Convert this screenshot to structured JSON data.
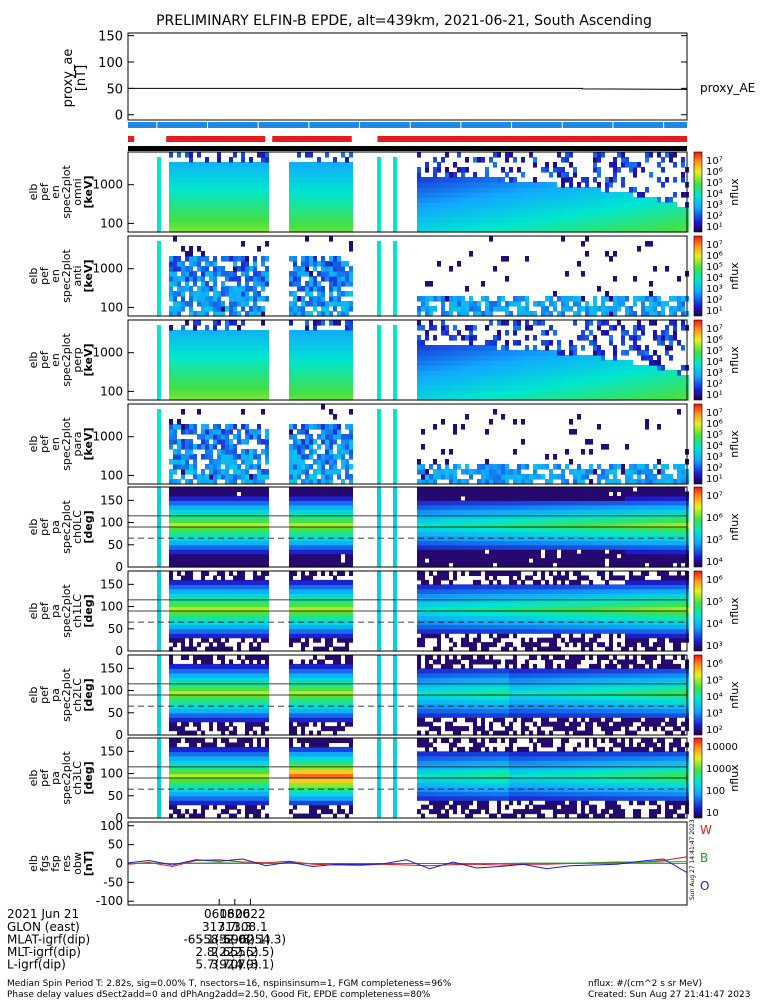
{
  "title": "PRELIMINARY ELFIN-B EPDE, alt=439km, 2021-06-21, South Ascending",
  "colors": {
    "ae_line": "#000000",
    "bar_blue": "#1e88e5",
    "bar_red": "#e51c1c",
    "bar_black": "#000000",
    "mag_W": "#e01b1b",
    "mag_B": "#1fa01f",
    "mag_O": "#1c1cc8"
  },
  "chart_data": [
    {
      "type": "line",
      "panel": "proxy_ae",
      "ylabel": [
        "proxy_ae",
        "[nT]"
      ],
      "yticks": [
        "150",
        "100",
        "50",
        "0"
      ],
      "ylim": [
        -10,
        155
      ],
      "legend": "proxy_AE",
      "series": [
        {
          "name": "proxy_AE",
          "x_min": [
            6.4,
            64.6,
            64.6,
            78.0
          ],
          "values": [
            50,
            50,
            49,
            48
          ]
        }
      ]
    },
    {
      "type": "bar",
      "panel": "bars",
      "blue_segments_min": [
        [
          6.3,
          78.0
        ]
      ],
      "red_segments_min": [
        [
          6.3,
          7.1
        ],
        [
          11.2,
          23.9
        ],
        [
          24.8,
          35.0
        ],
        [
          38.3,
          78.0
        ]
      ],
      "black_segments_min": [
        [
          6.3,
          78.0
        ]
      ]
    },
    {
      "type": "heatmap",
      "panel": "spec2plot omni",
      "ylabel": [
        "elb",
        "pef",
        "en",
        "spec2plot",
        "omni",
        "[keV]"
      ],
      "yticks": [
        "1000",
        "100"
      ],
      "ylim": [
        60,
        7000
      ],
      "yscale": "log",
      "colorbar_ticks": [
        "10⁷",
        "10⁶",
        "10⁵",
        "10⁴",
        "10³",
        "10²",
        "10¹"
      ],
      "colorbar_label": "nflux"
    },
    {
      "type": "heatmap",
      "panel": "spec2plot anti",
      "ylabel": [
        "elb",
        "pef",
        "en",
        "spec2plot",
        "anti",
        "[keV]"
      ],
      "yticks": [
        "1000",
        "100"
      ],
      "ylim": [
        60,
        7000
      ],
      "yscale": "log",
      "colorbar_ticks": [
        "10⁷",
        "10⁶",
        "10⁵",
        "10⁴",
        "10³",
        "10²",
        "10¹"
      ],
      "colorbar_label": "nflux"
    },
    {
      "type": "heatmap",
      "panel": "spec2plot perp",
      "ylabel": [
        "elb",
        "pef",
        "en",
        "spec2plot",
        "perp",
        "[keV]"
      ],
      "yticks": [
        "1000",
        "100"
      ],
      "ylim": [
        60,
        7000
      ],
      "yscale": "log",
      "colorbar_ticks": [
        "10⁷",
        "10⁶",
        "10⁵",
        "10⁴",
        "10³",
        "10²",
        "10¹"
      ],
      "colorbar_label": "nflux"
    },
    {
      "type": "heatmap",
      "panel": "spec2plot para",
      "ylabel": [
        "elb",
        "pef",
        "en",
        "spec2plot",
        "para",
        "[keV]"
      ],
      "yticks": [
        "1000",
        "100"
      ],
      "ylim": [
        60,
        7000
      ],
      "yscale": "log",
      "colorbar_ticks": [
        "10⁷",
        "10⁶",
        "10⁵",
        "10⁴",
        "10³",
        "10²",
        "10¹"
      ],
      "colorbar_label": "nflux"
    },
    {
      "type": "heatmap",
      "panel": "spec2plot ch0LC",
      "ylabel": [
        "elb",
        "pef",
        "pa",
        "spec2plot",
        "ch0LC",
        "[deg]"
      ],
      "yticks": [
        "150",
        "100",
        "50",
        "0"
      ],
      "ylim": [
        0,
        180
      ],
      "colorbar_ticks": [
        "10⁷",
        "10⁶",
        "10⁵",
        "10⁴"
      ],
      "colorbar_label": "nflux"
    },
    {
      "type": "heatmap",
      "panel": "spec2plot ch1LC",
      "ylabel": [
        "elb",
        "pef",
        "pa",
        "spec2plot",
        "ch1LC",
        "[deg]"
      ],
      "yticks": [
        "150",
        "100",
        "50",
        "0"
      ],
      "ylim": [
        0,
        180
      ],
      "colorbar_ticks": [
        "10⁶",
        "10⁵",
        "10⁴",
        "10³"
      ],
      "colorbar_label": "nflux"
    },
    {
      "type": "heatmap",
      "panel": "spec2plot ch2LC",
      "ylabel": [
        "elb",
        "pef",
        "pa",
        "spec2plot",
        "ch2LC",
        "[deg]"
      ],
      "yticks": [
        "150",
        "100",
        "50",
        "0"
      ],
      "ylim": [
        0,
        180
      ],
      "colorbar_ticks": [
        "10⁶",
        "10⁵",
        "10⁴",
        "10³",
        "10²"
      ],
      "colorbar_label": "nflux"
    },
    {
      "type": "heatmap",
      "panel": "spec2plot ch3LC",
      "ylabel": [
        "elb",
        "pef",
        "pa",
        "spec2plot",
        "ch3LC",
        "[deg]"
      ],
      "yticks": [
        "150",
        "100",
        "50",
        "0"
      ],
      "ylim": [
        0,
        180
      ],
      "colorbar_ticks": [
        "10000",
        "1000",
        "100",
        "10"
      ],
      "colorbar_label": "nflux"
    },
    {
      "type": "line",
      "panel": "fgs res",
      "ylabel": [
        "elb",
        "fgs",
        "fsp",
        "res",
        "obw",
        "[nT]"
      ],
      "yticks": [
        "100",
        "50",
        "0",
        "-50",
        "-100"
      ],
      "ylim": [
        -110,
        110
      ],
      "legend_letters": [
        "W",
        "B",
        "O"
      ],
      "stamp": "Sun Aug 27 14:41:47 2023",
      "series": [
        {
          "name": "W",
          "x_min": [
            6.4,
            9,
            12,
            15,
            18,
            21,
            24,
            27,
            30,
            33,
            36,
            39,
            42,
            45,
            48,
            51,
            54,
            57,
            60,
            63,
            66,
            69,
            72,
            75,
            78
          ],
          "values": [
            -2,
            3,
            -8,
            8,
            10,
            4,
            2,
            6,
            -2,
            -4,
            -5,
            -2,
            -4,
            -6,
            -3,
            -2,
            -4,
            -2,
            -2,
            0,
            2,
            4,
            3,
            8,
            18
          ]
        },
        {
          "name": "B",
          "x_min": [
            6.4,
            9,
            12,
            15,
            18,
            21,
            24,
            27,
            30,
            33,
            36,
            39,
            42,
            45,
            48,
            51,
            54,
            57,
            60,
            63,
            66,
            69,
            72,
            75,
            78
          ],
          "values": [
            0,
            1,
            0,
            1,
            2,
            1,
            0,
            1,
            0,
            0,
            0,
            0,
            0,
            0,
            0,
            0,
            0,
            1,
            1,
            1,
            2,
            2,
            3,
            4,
            5
          ]
        },
        {
          "name": "O",
          "x_min": [
            6.4,
            9,
            12,
            15,
            18,
            21,
            24,
            27,
            30,
            33,
            36,
            39,
            42,
            45,
            48,
            51,
            54,
            57,
            60,
            63,
            66,
            69,
            72,
            75,
            78
          ],
          "values": [
            2,
            8,
            -4,
            10,
            6,
            12,
            -6,
            4,
            -8,
            -2,
            -3,
            -1,
            10,
            -14,
            4,
            -12,
            -8,
            -2,
            -14,
            -6,
            -4,
            -2,
            6,
            12,
            -24
          ]
        }
      ]
    }
  ],
  "xaxis": {
    "tick_minutes": [
      18,
      20,
      22
    ],
    "tick_labels": [
      "0618",
      "0620",
      "0622"
    ],
    "start_label": "2021 Jun 21",
    "rows": [
      {
        "name": "GLON (east)",
        "values": [
          "317.7",
          "311.3",
          "308.1"
        ]
      },
      {
        "name": "MLAT-igrf(dip)",
        "values": [
          "-65.1(-69.8)",
          "-58.5(-62.1)",
          "-52.0(-54.3)"
        ]
      },
      {
        "name": "MLT-igrf(dip)",
        "values": [
          "2.8(2.5)",
          "2.6(2.5)",
          "2.5(2.5)"
        ]
      },
      {
        "name": "L-igrf(dip)",
        "values": [
          "5.7(9.0)",
          "3.7(4.9)",
          "2.7(3.1)"
        ]
      }
    ]
  },
  "footer": {
    "line1_left": "Median Spin Period T: 2.82s, sig=0.00% T, nsectors=16, nspinsinsum=1, FGM completeness=96%",
    "line2_left": "Phase delay values dSect2add=0 and dPhAng2add=2.50, Good Fit, EPDE completeness=80%",
    "line1_right": "nflux: #/(cm^2 s sr MeV)",
    "line2_right": "Created: Sun Aug 27 21:41:47 2023"
  }
}
